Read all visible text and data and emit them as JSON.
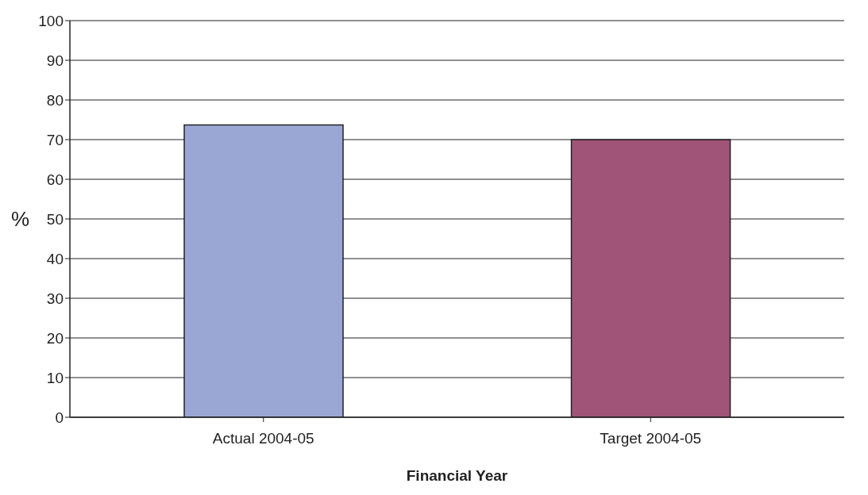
{
  "chart_data": {
    "type": "bar",
    "xlabel": "Financial Year",
    "ylabel": "%",
    "categories": [
      "Actual 2004-05",
      "Target 2004-05"
    ],
    "values": [
      73.7,
      70
    ],
    "colors": [
      "#9aa7d4",
      "#a05578"
    ],
    "ylim": [
      0,
      100
    ],
    "yticks": [
      0,
      10,
      20,
      30,
      40,
      50,
      60,
      70,
      80,
      90,
      100
    ],
    "grid": "y"
  }
}
